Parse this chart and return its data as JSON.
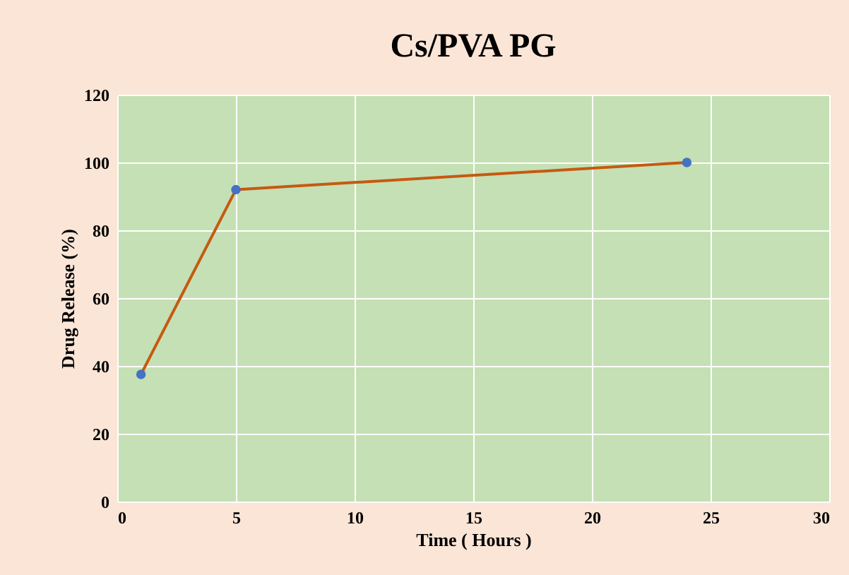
{
  "chart_data": {
    "type": "line",
    "title": "Cs/PVA PG",
    "xlabel": "Time ( Hours )",
    "ylabel": "Drug Release (%)",
    "x": [
      1,
      5,
      24
    ],
    "series": [
      {
        "color": "#c55a11",
        "colors": [
          "#4472c4",
          "#4472c4",
          "#4472c4"
        ],
        "values": [
          37.5,
          92,
          100
        ]
      }
    ],
    "xlim": [
      0,
      30
    ],
    "xticks": [
      0,
      5,
      10,
      15,
      20,
      25,
      30
    ],
    "ylim": [
      0,
      120
    ],
    "yticks": [
      0,
      20,
      40,
      60,
      80,
      100,
      120
    ],
    "grid": true,
    "marker": "circle",
    "line_style": "solid"
  }
}
